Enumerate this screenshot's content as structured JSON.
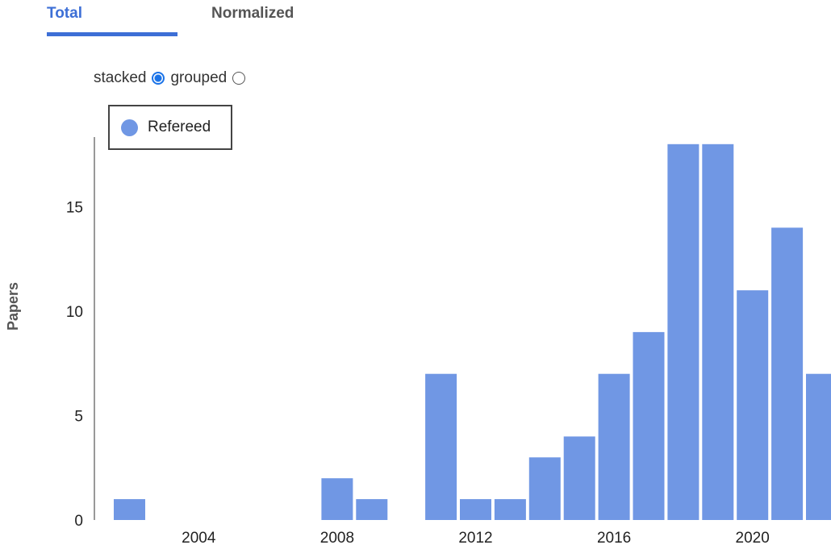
{
  "tabs": {
    "total": "Total",
    "normalized": "Normalized"
  },
  "mode": {
    "stacked": "stacked",
    "grouped": "grouped",
    "selected": "stacked"
  },
  "colors": {
    "bar": "#7097e4",
    "accent": "#3d6fd6"
  },
  "chart_data": {
    "type": "bar",
    "ylabel": "Papers",
    "xlabel": "",
    "ylim": [
      0,
      18
    ],
    "yticks": [
      0,
      5,
      10,
      15
    ],
    "xticks": [
      2004,
      2008,
      2012,
      2016,
      2020
    ],
    "legend": {
      "entries": [
        "Refereed"
      ],
      "placement": "top-left"
    },
    "grid": false,
    "series": [
      {
        "name": "Refereed",
        "x": [
          2002,
          2003,
          2004,
          2005,
          2006,
          2007,
          2008,
          2009,
          2010,
          2011,
          2012,
          2013,
          2014,
          2015,
          2016,
          2017,
          2018,
          2019,
          2020,
          2021,
          2022
        ],
        "values": [
          1,
          0,
          0,
          0,
          0,
          0,
          2,
          1,
          0,
          7,
          1,
          1,
          3,
          4,
          7,
          9,
          18,
          18,
          11,
          14,
          7
        ]
      }
    ]
  }
}
